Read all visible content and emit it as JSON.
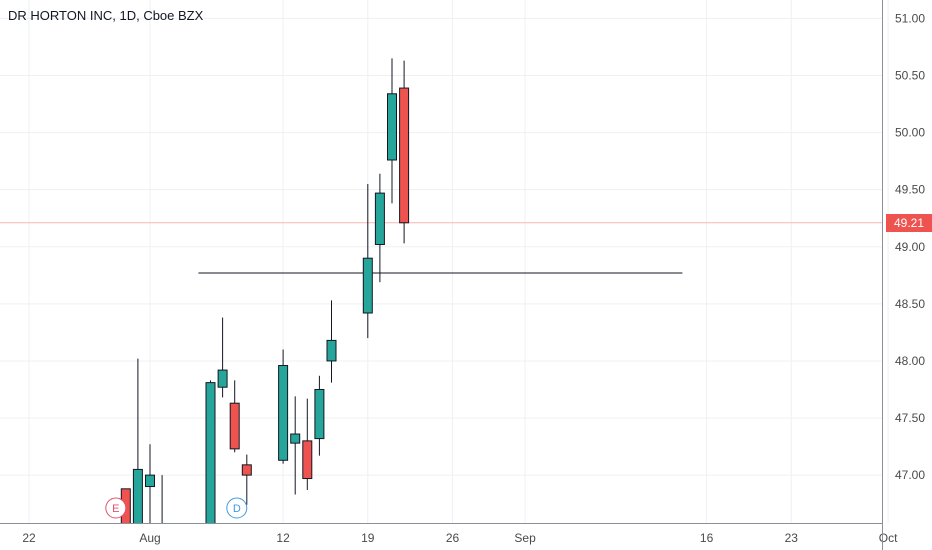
{
  "title": "DR HORTON INC, 1D, Cboe BZX",
  "colors": {
    "up": "#26a69a",
    "down": "#ef5350",
    "grid": "#eef0f3",
    "axis": "#8a8f98",
    "last_price_line": "#f7b5b4",
    "last_price_tag": "#ef5350",
    "hline": "#131722",
    "earnings": "#e84e6a",
    "dividend": "#3f9ae0"
  },
  "chart_data": {
    "type": "candlestick",
    "title": "DR HORTON INC, 1D, Cboe BZX",
    "ylim": [
      46.55,
      51.1
    ],
    "y_ticks": [
      "51.00",
      "50.50",
      "50.00",
      "49.50",
      "49.00",
      "48.50",
      "48.00",
      "47.50",
      "47.00"
    ],
    "x_tick_labels": [
      {
        "label": "22",
        "date": "2019-07-22"
      },
      {
        "label": "Aug",
        "date": "2019-08-01"
      },
      {
        "label": "12",
        "date": "2019-08-12"
      },
      {
        "label": "19",
        "date": "2019-08-19"
      },
      {
        "label": "26",
        "date": "2019-08-26"
      },
      {
        "label": "Sep",
        "date": "2019-09-01"
      },
      {
        "label": "16",
        "date": "2019-09-16"
      },
      {
        "label": "23",
        "date": "2019-09-23"
      },
      {
        "label": "Oct",
        "date": "2019-10-01"
      }
    ],
    "candles": [
      {
        "date": "2019-07-30",
        "open": 46.88,
        "high": 46.88,
        "low": 46.4,
        "close": 46.4
      },
      {
        "date": "2019-07-31",
        "open": 46.5,
        "high": 48.02,
        "low": 46.3,
        "close": 47.05
      },
      {
        "date": "2019-08-01",
        "open": 46.9,
        "high": 47.27,
        "low": 46.5,
        "close": 47.0
      },
      {
        "date": "2019-08-02",
        "open": 46.5,
        "high": 47.0,
        "low": 46.4,
        "close": 46.5
      },
      {
        "date": "2019-08-05",
        "open": 46.5,
        "high": 46.55,
        "low": 46.45,
        "close": 46.5
      },
      {
        "date": "2019-08-06",
        "open": 46.5,
        "high": 47.83,
        "low": 46.45,
        "close": 47.81
      },
      {
        "date": "2019-08-07",
        "open": 47.77,
        "high": 48.38,
        "low": 47.68,
        "close": 47.92
      },
      {
        "date": "2019-08-08",
        "open": 47.63,
        "high": 47.83,
        "low": 47.2,
        "close": 47.23
      },
      {
        "date": "2019-08-09",
        "open": 47.09,
        "high": 47.18,
        "low": 46.74,
        "close": 47.0
      },
      {
        "date": "2019-08-12",
        "open": 47.13,
        "high": 48.1,
        "low": 47.1,
        "close": 47.96
      },
      {
        "date": "2019-08-13",
        "open": 47.28,
        "high": 47.69,
        "low": 46.83,
        "close": 47.36
      },
      {
        "date": "2019-08-14",
        "open": 47.3,
        "high": 47.67,
        "low": 46.87,
        "close": 46.97
      },
      {
        "date": "2019-08-15",
        "open": 47.32,
        "high": 47.87,
        "low": 47.17,
        "close": 47.75
      },
      {
        "date": "2019-08-16",
        "open": 48.0,
        "high": 48.53,
        "low": 47.81,
        "close": 48.18
      },
      {
        "date": "2019-08-19",
        "open": 48.42,
        "high": 49.55,
        "low": 48.2,
        "close": 48.9
      },
      {
        "date": "2019-08-20",
        "open": 49.02,
        "high": 49.64,
        "low": 48.69,
        "close": 49.47
      },
      {
        "date": "2019-08-21",
        "open": 49.76,
        "high": 50.65,
        "low": 49.38,
        "close": 50.34
      },
      {
        "date": "2019-08-22",
        "open": 50.39,
        "high": 50.63,
        "low": 49.03,
        "close": 49.21
      }
    ],
    "last_price": "49.21",
    "horizontal_line": {
      "price": 48.77,
      "from": "2019-08-05",
      "to": "2019-09-14"
    },
    "event_markers": [
      {
        "type": "E",
        "date": "2019-07-30"
      },
      {
        "type": "D",
        "date": "2019-08-09"
      }
    ]
  }
}
